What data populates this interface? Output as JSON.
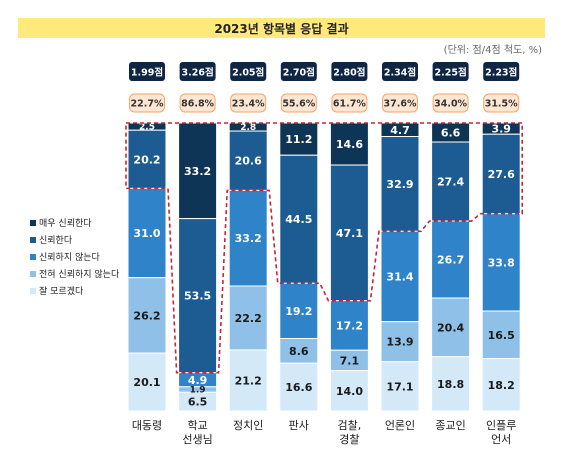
{
  "header": {
    "title": "2023년 항목별 응답 결과",
    "unit": "(단위: 점/4점 척도, %)"
  },
  "colors": {
    "title_bar": "#ffe97a",
    "score_badge": "#0f2544",
    "pct_badge_fill": "#fde7d3",
    "pct_badge_border": "#f2a66a",
    "outline": "#cc2233",
    "series": [
      "#0e3556",
      "#1d5c93",
      "#2f84c9",
      "#8fc1e8",
      "#d3e9f8"
    ]
  },
  "chart_data": {
    "type": "bar",
    "stacked": true,
    "categories": [
      "대동령",
      "학교 선생님",
      "정치인",
      "판사",
      "검찰, 경찰",
      "언론인",
      "종교인",
      "인플루 언서"
    ],
    "category_labels": [
      [
        "대동령"
      ],
      [
        "학교",
        "선생님"
      ],
      [
        "정치인"
      ],
      [
        "판사"
      ],
      [
        "검찰,",
        "경찰"
      ],
      [
        "언론인"
      ],
      [
        "종교인"
      ],
      [
        "인플루",
        "언서"
      ]
    ],
    "scores": [
      "1.99점",
      "3.26점",
      "2.05점",
      "2.70점",
      "2.80점",
      "2.34점",
      "2.25점",
      "2.23점"
    ],
    "trust_percent": [
      "22.7%",
      "86.8%",
      "23.4%",
      "55.6%",
      "61.7%",
      "37.6%",
      "34.0%",
      "31.5%"
    ],
    "series": [
      {
        "name": "매우 신뢰한다",
        "values": [
          2.5,
          33.2,
          2.8,
          11.2,
          14.6,
          4.7,
          6.6,
          3.9
        ]
      },
      {
        "name": "신뢰한다",
        "values": [
          20.2,
          53.5,
          20.6,
          44.5,
          47.1,
          32.9,
          27.4,
          27.6
        ]
      },
      {
        "name": "신뢰하지 않는다",
        "values": [
          31.0,
          4.9,
          33.2,
          19.2,
          17.2,
          31.4,
          26.7,
          33.8
        ]
      },
      {
        "name": "전혀 신뢰하지 않는다",
        "values": [
          26.2,
          1.9,
          22.2,
          8.6,
          7.1,
          13.9,
          20.4,
          16.5
        ]
      },
      {
        "name": "잘 모르겠다",
        "values": [
          20.1,
          6.5,
          21.2,
          16.6,
          14.0,
          17.1,
          18.8,
          18.2
        ]
      }
    ],
    "ylim": [
      0,
      100
    ],
    "legend_position": "left",
    "grid": false
  }
}
